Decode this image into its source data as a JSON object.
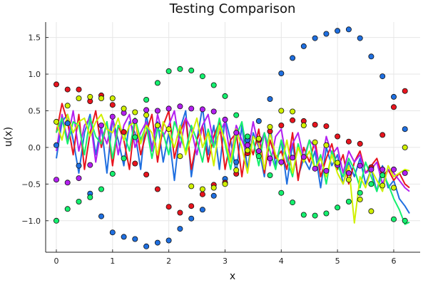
{
  "chart_data": {
    "type": "line",
    "title": "Testing Comparison",
    "xlabel": "x",
    "ylabel": "u(x)",
    "xlim": [
      -0.19,
      6.47
    ],
    "ylim": [
      -1.43,
      1.71
    ],
    "xticks": [
      0,
      1,
      2,
      3,
      4,
      5,
      6
    ],
    "yticks": [
      -1.0,
      -0.5,
      0.0,
      0.5,
      1.0,
      1.5
    ],
    "xtick_labels": [
      "0",
      "1",
      "2",
      "3",
      "4",
      "5",
      "6"
    ],
    "ytick_labels": [
      "−1.0",
      "−0.5",
      "0.0",
      "0.5",
      "1.0",
      "1.5"
    ],
    "grid": true,
    "legend": "none",
    "line_x": [
      0.0,
      0.1,
      0.2,
      0.3,
      0.4,
      0.5,
      0.6,
      0.7,
      0.8,
      0.9,
      1.0,
      1.1,
      1.2,
      1.3,
      1.4,
      1.5,
      1.6,
      1.7,
      1.8,
      1.9,
      2.0,
      2.1,
      2.2,
      2.3,
      2.4,
      2.5,
      2.6,
      2.7,
      2.8,
      2.9,
      3.0,
      3.1,
      3.2,
      3.3,
      3.4,
      3.5,
      3.6,
      3.7,
      3.8,
      3.9,
      4.0,
      4.1,
      4.2,
      4.3,
      4.4,
      4.5,
      4.6,
      4.7,
      4.8,
      4.9,
      5.0,
      5.1,
      5.2,
      5.3,
      5.4,
      5.5,
      5.6,
      5.7,
      5.8,
      5.9,
      6.0,
      6.1,
      6.2,
      6.28
    ],
    "scatter_x": [
      0.0,
      0.2,
      0.4,
      0.6,
      0.8,
      1.0,
      1.2,
      1.4,
      1.6,
      1.8,
      2.0,
      2.2,
      2.4,
      2.6,
      2.8,
      3.0,
      3.2,
      3.4,
      3.6,
      3.8,
      4.0,
      4.2,
      4.4,
      4.6,
      4.8,
      5.0,
      5.2,
      5.4,
      5.6,
      5.8,
      6.0,
      6.2
    ],
    "series": [
      {
        "color": "#1f6fe0",
        "line_y": [
          -0.15,
          0.35,
          0.45,
          0.1,
          -0.35,
          0.2,
          0.45,
          -0.1,
          0.3,
          -0.35,
          0.4,
          0.1,
          -0.25,
          0.35,
          0.2,
          -0.3,
          0.45,
          0.0,
          0.35,
          -0.2,
          0.2,
          -0.45,
          0.25,
          0.5,
          -0.4,
          0.1,
          0.55,
          -0.1,
          0.3,
          -0.3,
          0.4,
          0.1,
          -0.35,
          0.3,
          -0.3,
          0.2,
          0.0,
          -0.4,
          0.3,
          -0.25,
          0.1,
          -0.5,
          0.05,
          -0.4,
          -0.15,
          -0.3,
          -0.05,
          -0.55,
          0.0,
          -0.25,
          -0.1,
          -0.5,
          -0.2,
          -0.4,
          -0.15,
          -0.5,
          -0.3,
          -0.6,
          -0.25,
          -0.55,
          -0.45,
          -0.7,
          -0.8,
          -0.9
        ],
        "points_y": [
          0.03,
          0.33,
          -0.25,
          -0.63,
          -0.94,
          -1.16,
          -1.22,
          -1.25,
          -1.35,
          -1.3,
          -1.27,
          -1.11,
          -0.97,
          -0.85,
          -0.66,
          -0.43,
          -0.2,
          0.1,
          0.36,
          0.66,
          1.01,
          1.22,
          1.38,
          1.49,
          1.55,
          1.59,
          1.61,
          1.49,
          1.24,
          0.97,
          0.69,
          0.25
        ]
      },
      {
        "color": "#e8141e",
        "line_y": [
          0.2,
          0.6,
          0.35,
          -0.1,
          0.45,
          -0.3,
          0.2,
          0.5,
          0.0,
          0.35,
          -0.25,
          0.3,
          0.1,
          -0.3,
          0.4,
          -0.1,
          0.2,
          0.45,
          -0.2,
          0.3,
          0.5,
          -0.15,
          0.2,
          0.4,
          -0.3,
          0.1,
          0.3,
          -0.2,
          0.15,
          0.35,
          -0.3,
          0.1,
          0.2,
          -0.4,
          0.15,
          -0.1,
          0.25,
          -0.35,
          0.1,
          -0.15,
          -0.05,
          -0.3,
          0.2,
          -0.45,
          0.0,
          -0.2,
          0.1,
          -0.4,
          -0.15,
          0.05,
          -0.3,
          -0.1,
          -0.5,
          -0.2,
          -0.05,
          -0.35,
          -0.25,
          -0.15,
          -0.4,
          -0.3,
          -0.45,
          -0.35,
          -0.5,
          -0.55
        ],
        "points_y": [
          0.86,
          0.79,
          0.79,
          0.63,
          0.71,
          0.58,
          0.21,
          -0.22,
          -0.37,
          -0.57,
          -0.81,
          -0.89,
          -0.8,
          -0.64,
          -0.51,
          -0.48,
          -0.36,
          -0.08,
          0.1,
          0.22,
          0.3,
          0.37,
          0.36,
          0.31,
          0.29,
          0.15,
          0.08,
          0.05,
          -0.27,
          0.17,
          0.55,
          0.77
        ]
      },
      {
        "color": "#b31ff0",
        "line_y": [
          -0.05,
          0.45,
          0.1,
          0.5,
          -0.05,
          0.3,
          0.4,
          -0.2,
          0.25,
          0.05,
          0.4,
          -0.1,
          0.3,
          0.45,
          0.0,
          0.2,
          0.35,
          -0.05,
          0.45,
          0.15,
          0.3,
          0.5,
          0.0,
          0.4,
          0.25,
          -0.1,
          0.3,
          0.45,
          0.05,
          0.2,
          0.35,
          -0.15,
          0.3,
          0.1,
          -0.1,
          0.35,
          0.0,
          0.2,
          -0.25,
          0.15,
          0.25,
          -0.2,
          0.05,
          0.2,
          -0.15,
          0.1,
          0.0,
          -0.3,
          0.15,
          -0.1,
          0.0,
          -0.35,
          -0.05,
          -0.2,
          -0.1,
          -0.35,
          -0.3,
          -0.2,
          -0.5,
          -0.3,
          -0.35,
          -0.45,
          -0.55,
          -0.6
        ],
        "points_y": [
          -0.44,
          -0.48,
          -0.42,
          -0.24,
          0.3,
          0.42,
          0.47,
          0.36,
          0.51,
          0.5,
          0.53,
          0.56,
          0.53,
          0.52,
          0.49,
          0.38,
          0.2,
          0.03,
          -0.05,
          -0.15,
          -0.2,
          -0.14,
          -0.13,
          -0.29,
          -0.32,
          -0.24,
          -0.35,
          -0.25,
          -0.3,
          -0.3,
          -0.3,
          -0.35
        ]
      },
      {
        "color": "#14f06e",
        "line_y": [
          0.2,
          0.4,
          0.05,
          0.35,
          0.3,
          -0.1,
          0.4,
          0.15,
          0.05,
          0.35,
          -0.15,
          0.3,
          0.2,
          -0.05,
          0.4,
          0.1,
          0.3,
          -0.15,
          0.25,
          0.2,
          -0.1,
          0.35,
          0.15,
          -0.05,
          0.3,
          0.1,
          -0.2,
          0.25,
          0.0,
          0.4,
          0.05,
          -0.3,
          0.15,
          0.35,
          -0.1,
          0.1,
          -0.25,
          0.2,
          -0.05,
          -0.3,
          0.1,
          -0.15,
          -0.4,
          0.05,
          -0.2,
          0.1,
          -0.3,
          -0.1,
          -0.5,
          -0.05,
          -0.25,
          -0.4,
          -0.15,
          -0.3,
          -0.55,
          -0.2,
          -0.4,
          -0.6,
          -0.35,
          -0.5,
          -0.7,
          -0.85,
          -1.05,
          -1.02
        ],
        "points_y": [
          -1.0,
          -0.84,
          -0.74,
          -0.68,
          -0.57,
          -0.36,
          -0.15,
          0.14,
          0.65,
          0.88,
          1.04,
          1.07,
          1.05,
          0.97,
          0.85,
          0.7,
          0.44,
          0.15,
          -0.12,
          -0.38,
          -0.62,
          -0.75,
          -0.92,
          -0.93,
          -0.9,
          -0.82,
          -0.74,
          -0.62,
          -0.5,
          -0.38,
          -0.98,
          -1.0
        ]
      },
      {
        "color": "#d0f000",
        "line_y": [
          0.35,
          0.1,
          0.45,
          0.2,
          0.35,
          0.4,
          0.15,
          0.35,
          0.45,
          0.25,
          0.2,
          0.4,
          0.1,
          0.3,
          0.35,
          0.05,
          0.3,
          0.2,
          -0.1,
          0.35,
          0.2,
          0.0,
          0.3,
          -0.1,
          0.15,
          0.4,
          0.0,
          0.2,
          -0.25,
          0.3,
          0.1,
          -0.2,
          0.25,
          0.0,
          -0.35,
          0.15,
          0.05,
          -0.3,
          0.2,
          -0.1,
          -0.25,
          0.1,
          -0.35,
          0.0,
          -0.2,
          -0.05,
          -0.3,
          -0.15,
          -0.4,
          -0.1,
          -0.35,
          -0.5,
          -0.25,
          -1.03,
          -0.4,
          -0.55,
          -0.3,
          -0.45,
          -0.6,
          -0.25,
          -0.4,
          -0.35,
          -0.3,
          -0.32
        ],
        "points_y": [
          0.35,
          0.57,
          0.67,
          0.69,
          0.67,
          0.67,
          0.53,
          0.48,
          0.44,
          0.3,
          0.25,
          -0.12,
          -0.53,
          -0.57,
          -0.55,
          -0.5,
          -0.31,
          -0.04,
          0.12,
          0.28,
          0.5,
          0.49,
          0.3,
          0.07,
          0.03,
          -0.21,
          -0.44,
          -0.71,
          -0.87,
          -0.52,
          -0.55,
          0.0
        ]
      }
    ]
  }
}
